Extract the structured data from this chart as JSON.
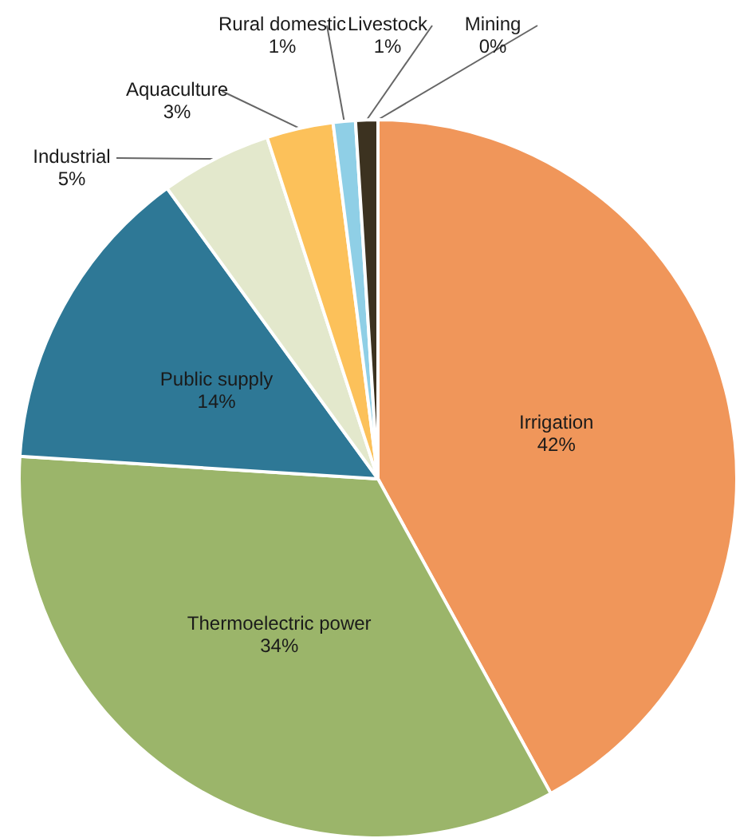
{
  "chart_data": {
    "type": "pie",
    "categories": [
      "Irrigation",
      "Thermoelectric power",
      "Public supply",
      "Industrial",
      "Aquaculture",
      "Rural domestic",
      "Livestock",
      "Mining"
    ],
    "values": [
      42,
      34,
      14,
      5,
      3,
      1,
      1,
      0
    ],
    "value_labels": [
      "42%",
      "34%",
      "14%",
      "5%",
      "3%",
      "1%",
      "1%",
      "0%"
    ],
    "colors": [
      "#f0965a",
      "#9bb56a",
      "#2e7896",
      "#e3e8cc",
      "#fcc15a",
      "#8fcfe6",
      "#3c3220",
      "#c0262d"
    ]
  }
}
